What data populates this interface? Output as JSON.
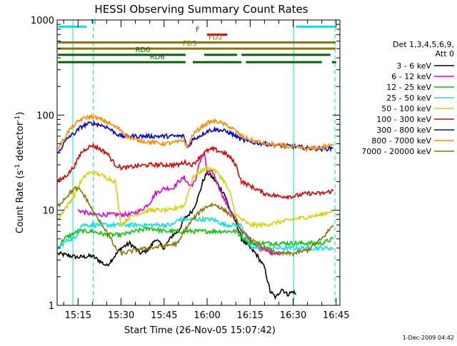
{
  "chart_data": {
    "type": "line",
    "title": "HESSI Observing Summary Count Rates",
    "xlabel": "Start Time (26-Nov-05 15:07:42)",
    "ylabel": "Count Rate (s",
    "ylabel_sup1": "-1",
    "ylabel_mid": " detector",
    "ylabel_sup2": "-1",
    "ylabel_end": ")",
    "y_scale": "log",
    "ylim": [
      1,
      1000
    ],
    "xlim_minutes": [
      7.7,
      48.5
    ],
    "x_time_zero": "15:00",
    "y_ticks": [
      {
        "v": 1,
        "label": "1"
      },
      {
        "v": 10,
        "label": "10"
      },
      {
        "v": 100,
        "label": "100"
      },
      {
        "v": 1000,
        "label": "1000"
      }
    ],
    "x_ticks": [
      {
        "v": 15,
        "label": "15:15"
      },
      {
        "v": 30,
        "label": "15:30"
      },
      {
        "v": 45,
        "label": "15:45"
      },
      {
        "v": 60,
        "label": "16:00"
      },
      {
        "v": 75,
        "label": "16:15"
      },
      {
        "v": 90,
        "label": "16:30"
      },
      {
        "v": 105,
        "label": "16:45"
      }
    ],
    "legend_header": [
      "Det 1,3,4,5,6,9,",
      "Att 0"
    ],
    "legend_placement": "right",
    "date_stamp": "1-Dec-2009 04:42",
    "vertical_markers": [
      {
        "x": 13.2,
        "style": "solid",
        "color": "#00e5e5"
      },
      {
        "x": 20.3,
        "style": "dashed",
        "color": "#00e5e5"
      },
      {
        "x": 90.2,
        "style": "solid",
        "color": "#00e5e5"
      },
      {
        "x": 104.6,
        "style": "dashed",
        "color": "#00e5e5"
      }
    ],
    "flag_bars": [
      {
        "label": "N",
        "color": "#00e5e5",
        "y": 850,
        "segments": [
          [
            8,
            18
          ],
          [
            91,
            105
          ]
        ],
        "label_x": 19.5
      },
      {
        "label": "F",
        "color": "#e00000",
        "y": 700,
        "segments": [
          [
            60,
            67
          ]
        ],
        "label_x": 56
      },
      {
        "label": "FD2",
        "color": "#8b7500",
        "y": 580,
        "segments": [
          [
            8,
            104.8
          ]
        ],
        "label_x": 60.5
      },
      {
        "label": "FD3",
        "color": "#8b7500",
        "y": 500,
        "segments": [
          [
            8,
            104.8
          ]
        ],
        "label_x": 51.5
      },
      {
        "label": "RD0",
        "color": "#006400",
        "y": 430,
        "segments": [
          [
            8,
            52.5
          ],
          [
            59,
            70.5
          ],
          [
            72,
            103
          ]
        ],
        "label_x": 35
      },
      {
        "label": "RD6",
        "color": "#006400",
        "y": 360,
        "segments": [
          [
            8,
            52.5
          ],
          [
            55,
            72
          ],
          [
            73.5,
            100
          ],
          [
            103.5,
            105
          ]
        ],
        "label_x": 40
      }
    ],
    "series": [
      {
        "name": "3 - 6 keV",
        "color": "#000000",
        "x": [
          8,
          15,
          20,
          22,
          25,
          30,
          33,
          37,
          40,
          42,
          45,
          48,
          50,
          52,
          55,
          57,
          58.5,
          60,
          62,
          64,
          66,
          68,
          70,
          72,
          75,
          77,
          80,
          82,
          84,
          86,
          88,
          90,
          91
        ],
        "y": [
          3.5,
          3.2,
          3.3,
          3.0,
          2.6,
          4.0,
          4.5,
          3.5,
          4.0,
          5.0,
          4.0,
          5.5,
          6.0,
          8.0,
          10.0,
          14.0,
          20.0,
          25.0,
          22.0,
          18.0,
          15.0,
          10.0,
          7.5,
          5.0,
          4.0,
          3.5,
          2.5,
          1.4,
          1.2,
          1.5,
          1.3,
          1.4,
          1.3
        ]
      },
      {
        "name": "6 - 12 keV",
        "color": "#e000e0",
        "x": [
          15,
          20,
          25,
          30,
          33,
          37,
          40,
          42,
          45,
          48,
          50,
          52,
          54,
          56,
          57,
          59,
          60,
          62,
          64,
          66,
          68,
          70,
          72,
          75,
          78,
          80,
          82,
          84,
          85,
          86
        ],
        "y": [
          10,
          9,
          9,
          9,
          9,
          10,
          12,
          15,
          17,
          17,
          20,
          22,
          18,
          20,
          30,
          40,
          25,
          25,
          18,
          13,
          10,
          8,
          6,
          5,
          4,
          4,
          3.5,
          3.5,
          3.5,
          3.5
        ]
      },
      {
        "name": "12 - 25 keV",
        "color": "#00cc00",
        "x": [
          8,
          10,
          15,
          20,
          25,
          30,
          35,
          40,
          45,
          50,
          55,
          60,
          65,
          70,
          75,
          80,
          85,
          90,
          95,
          100,
          104
        ],
        "y": [
          4,
          5,
          6,
          6,
          5.5,
          5.5,
          6,
          6.5,
          6,
          6,
          6,
          6,
          6,
          6,
          4.5,
          4.5,
          4.5,
          4.5,
          4.5,
          4.5,
          5
        ]
      },
      {
        "name": "25 - 50 keV",
        "color": "#00e5e5",
        "x": [
          8,
          10,
          12,
          14,
          15,
          16,
          20,
          25,
          28,
          30,
          35,
          40,
          45,
          48,
          50,
          52,
          55,
          57,
          60,
          62,
          64,
          66,
          68,
          70,
          72,
          75,
          80,
          85,
          90,
          95,
          100,
          104
        ],
        "y": [
          4,
          4.5,
          5,
          5,
          6,
          7,
          7,
          7,
          7,
          7,
          7,
          7,
          7,
          7,
          8,
          8,
          8,
          8,
          8,
          8,
          7.5,
          7,
          7,
          7,
          7,
          4,
          4,
          4,
          4,
          4,
          4,
          4
        ]
      },
      {
        "name": "50 - 100 keV",
        "color": "#d4d400",
        "x": [
          8,
          10,
          12,
          14,
          16,
          18,
          20,
          22,
          25,
          28,
          30,
          32,
          35,
          40,
          45,
          48,
          50,
          52,
          55,
          58,
          60,
          62,
          64,
          66,
          68,
          70,
          72,
          75,
          80,
          85,
          90,
          95,
          100,
          104
        ],
        "y": [
          8,
          10,
          12,
          15,
          20,
          24,
          25,
          24,
          22,
          20,
          7,
          8,
          9,
          10,
          10,
          10,
          11,
          11,
          22,
          26,
          28,
          27,
          24,
          20,
          15,
          9,
          8,
          7,
          7,
          7.5,
          8,
          8.5,
          9,
          10
        ]
      },
      {
        "name": "100 - 300 keV",
        "color": "#e00000",
        "x": [
          8,
          10,
          12,
          14,
          16,
          18,
          20,
          22,
          25,
          28,
          30,
          32,
          35,
          40,
          45,
          50,
          52,
          55,
          58,
          60,
          62,
          64,
          66,
          68,
          70,
          72,
          75,
          80,
          85,
          90,
          95,
          100,
          104
        ],
        "y": [
          20,
          22,
          25,
          30,
          40,
          45,
          48,
          45,
          40,
          30,
          28,
          28,
          29,
          30,
          30,
          30,
          32,
          30,
          38,
          42,
          44,
          42,
          40,
          36,
          30,
          20,
          18,
          15,
          14,
          14,
          15,
          15,
          16
        ]
      },
      {
        "name": "300 - 800 keV",
        "color": "#0000e0",
        "x": [
          8,
          10,
          12,
          14,
          16,
          18,
          20,
          22,
          25,
          28,
          30,
          32,
          35,
          40,
          45,
          50,
          52,
          53,
          55,
          58,
          60,
          62,
          64,
          66,
          68,
          70,
          72,
          75,
          80,
          85,
          90,
          95,
          100,
          104
        ],
        "y": [
          40,
          50,
          60,
          65,
          75,
          80,
          82,
          80,
          75,
          65,
          60,
          60,
          60,
          60,
          60,
          60,
          60,
          45,
          55,
          62,
          68,
          70,
          70,
          68,
          65,
          60,
          55,
          52,
          50,
          48,
          47,
          45,
          44,
          45
        ]
      },
      {
        "name": "800 - 7000 keV",
        "color": "#ff8c00",
        "x": [
          8,
          10,
          12,
          14,
          16,
          18,
          20,
          22,
          25,
          28,
          30,
          32,
          35,
          40,
          45,
          50,
          52,
          53,
          55,
          58,
          60,
          62,
          64,
          66,
          68,
          70,
          72,
          75,
          80,
          85,
          90,
          95,
          100,
          104
        ],
        "y": [
          45,
          55,
          70,
          80,
          90,
          95,
          96,
          92,
          85,
          75,
          70,
          60,
          55,
          52,
          50,
          52,
          55,
          45,
          62,
          75,
          82,
          86,
          85,
          80,
          75,
          68,
          60,
          55,
          50,
          48,
          46,
          44,
          46,
          48
        ]
      },
      {
        "name": "7000 - 20000 keV",
        "color": "#8b7500",
        "x": [
          8,
          10,
          12,
          14,
          16,
          18,
          20,
          22,
          25,
          28,
          30,
          32,
          35,
          40,
          45,
          50,
          52,
          55,
          58,
          60,
          62,
          64,
          66,
          68,
          70,
          72,
          75,
          77,
          80,
          85,
          90,
          95,
          100,
          104
        ],
        "y": [
          11,
          13,
          15,
          17,
          16,
          13,
          10,
          8,
          6,
          4,
          3.5,
          3.6,
          3.8,
          4,
          4.2,
          4.5,
          6,
          8,
          10,
          11,
          11.5,
          11,
          10,
          9,
          8,
          6,
          5,
          4.5,
          4,
          3.5,
          3.5,
          3.8,
          5,
          7
        ]
      }
    ]
  }
}
